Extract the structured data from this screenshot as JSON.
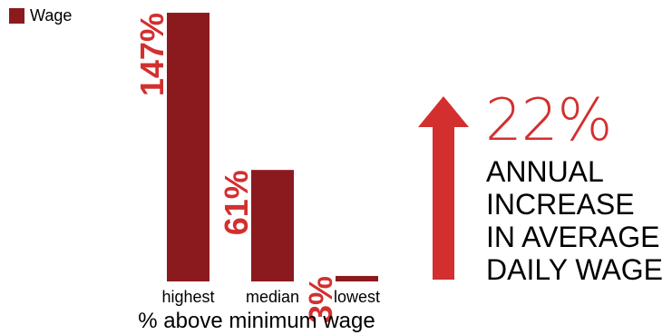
{
  "legend": {
    "label": "Wage",
    "color": "#8b1a1f"
  },
  "chart_data": {
    "type": "bar",
    "categories": [
      "highest",
      "median",
      "lowest"
    ],
    "values": [
      147,
      61,
      3
    ],
    "data_labels": [
      "147%",
      "61%",
      "3%"
    ],
    "xlabel": "% above minimum wage",
    "ylabel": "",
    "series": [
      {
        "name": "Wage",
        "values": [
          147,
          61,
          3
        ]
      }
    ],
    "ylim": [
      0,
      150
    ],
    "grid": false,
    "legend_position": "top-left",
    "bar_color": "#8b1a1f",
    "label_color": "#d32f2f"
  },
  "callout": {
    "value": "22%",
    "lines": [
      "ANNUAL",
      "INCREASE",
      "IN AVERAGE",
      "DAILY WAGE"
    ],
    "arrow_icon": "up-arrow-icon",
    "color": "#d32f2f"
  }
}
